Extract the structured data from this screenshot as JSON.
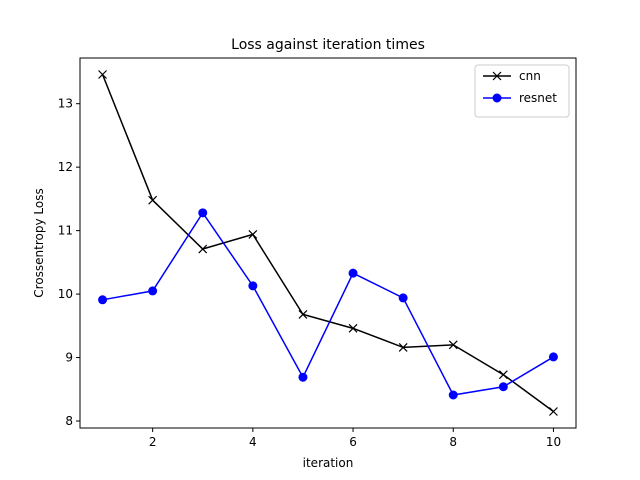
{
  "chart_data": {
    "type": "line",
    "title": "Loss against iteration times",
    "xlabel": "iteration",
    "ylabel": "Crossentropy Loss",
    "xlim": [
      0.55,
      10.45
    ],
    "ylim": [
      7.89,
      13.72
    ],
    "xticks": [
      2,
      4,
      6,
      8,
      10
    ],
    "yticks": [
      8,
      9,
      10,
      11,
      12,
      13
    ],
    "grid": false,
    "legend_position": "top-right",
    "x": [
      1,
      2,
      3,
      4,
      5,
      6,
      7,
      8,
      9,
      10
    ],
    "series": [
      {
        "name": "cnn",
        "color": "#000000",
        "marker": "x",
        "values": [
          13.46,
          11.48,
          10.71,
          10.94,
          9.68,
          9.46,
          9.16,
          9.2,
          8.73,
          8.15
        ]
      },
      {
        "name": "resnet",
        "color": "#0000ff",
        "marker": "o",
        "values": [
          9.91,
          10.05,
          11.28,
          10.13,
          8.69,
          10.33,
          9.94,
          8.41,
          8.54,
          9.01
        ]
      }
    ]
  }
}
